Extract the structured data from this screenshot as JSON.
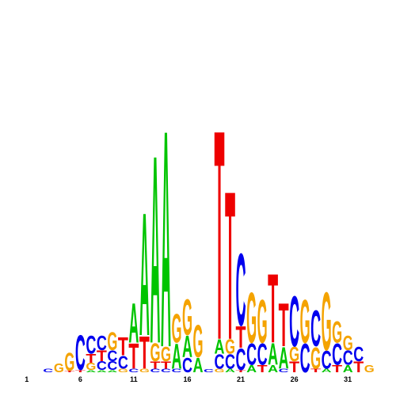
{
  "chart_data": {
    "type": "logo",
    "positions": [
      1,
      2,
      3,
      4,
      5,
      6,
      7,
      8,
      9,
      10,
      11,
      12,
      13,
      14,
      15,
      16,
      17,
      18,
      19,
      20,
      21,
      22,
      23,
      24,
      25,
      26,
      27,
      28,
      29,
      30,
      31,
      32,
      33
    ],
    "stacks": [
      [],
      [],
      [
        {
          "letter": "C",
          "height": 0.05
        }
      ],
      [
        {
          "letter": "G",
          "height": 0.12
        }
      ],
      [
        {
          "letter": "T",
          "height": 0.02
        },
        {
          "letter": "G",
          "height": 0.25
        }
      ],
      [
        {
          "letter": "T",
          "height": 0.03
        },
        {
          "letter": "C",
          "height": 0.48
        }
      ],
      [
        {
          "letter": "A",
          "height": 0.03
        },
        {
          "letter": "G",
          "height": 0.1
        },
        {
          "letter": "T",
          "height": 0.12
        },
        {
          "letter": "C",
          "height": 0.25
        }
      ],
      [
        {
          "letter": "A",
          "height": 0.03
        },
        {
          "letter": "C",
          "height": 0.12
        },
        {
          "letter": "T",
          "height": 0.15
        },
        {
          "letter": "C",
          "height": 0.2
        }
      ],
      [
        {
          "letter": "A",
          "height": 0.03
        },
        {
          "letter": "C",
          "height": 0.12
        },
        {
          "letter": "C",
          "height": 0.15
        },
        {
          "letter": "G",
          "height": 0.25
        }
      ],
      [
        {
          "letter": "G",
          "height": 0.05
        },
        {
          "letter": "C",
          "height": 0.18
        },
        {
          "letter": "T",
          "height": 0.25
        }
      ],
      [
        {
          "letter": "C",
          "height": 0.05
        },
        {
          "letter": "T",
          "height": 0.35
        },
        {
          "letter": "A",
          "height": 0.55
        }
      ],
      [
        {
          "letter": "G",
          "height": 0.05
        },
        {
          "letter": "T",
          "height": 0.45
        },
        {
          "letter": "A",
          "height": 1.7
        }
      ],
      [
        {
          "letter": "C",
          "height": 0.05
        },
        {
          "letter": "T",
          "height": 0.1
        },
        {
          "letter": "G",
          "height": 0.25
        },
        {
          "letter": "A",
          "height": 2.6
        }
      ],
      [
        {
          "letter": "C",
          "height": 0.05
        },
        {
          "letter": "T",
          "height": 0.1
        },
        {
          "letter": "G",
          "height": 0.2
        },
        {
          "letter": "A",
          "height": 3.0
        }
      ],
      [
        {
          "letter": "C",
          "height": 0.05
        },
        {
          "letter": "A",
          "height": 0.35
        },
        {
          "letter": "G",
          "height": 0.4
        }
      ],
      [
        {
          "letter": "C",
          "height": 0.2
        },
        {
          "letter": "A",
          "height": 0.3
        },
        {
          "letter": "G",
          "height": 0.5
        }
      ],
      [
        {
          "letter": "A",
          "height": 0.2
        },
        {
          "letter": "G",
          "height": 0.45
        }
      ],
      [
        {
          "letter": "C",
          "height": 0.04
        }
      ],
      [
        {
          "letter": "G",
          "height": 0.05
        },
        {
          "letter": "C",
          "height": 0.2
        },
        {
          "letter": "A",
          "height": 0.2
        },
        {
          "letter": "T",
          "height": 2.9
        }
      ],
      [
        {
          "letter": "A",
          "height": 0.05
        },
        {
          "letter": "C",
          "height": 0.2
        },
        {
          "letter": "G",
          "height": 0.2
        },
        {
          "letter": "T",
          "height": 2.05
        }
      ],
      [
        {
          "letter": "T",
          "height": 0.03
        },
        {
          "letter": "C",
          "height": 0.3
        },
        {
          "letter": "T",
          "height": 0.3
        },
        {
          "letter": "C",
          "height": 1.0
        }
      ],
      [
        {
          "letter": "A",
          "height": 0.1
        },
        {
          "letter": "C",
          "height": 0.3
        },
        {
          "letter": "G",
          "height": 0.7
        }
      ],
      [
        {
          "letter": "T",
          "height": 0.1
        },
        {
          "letter": "C",
          "height": 0.3
        },
        {
          "letter": "G",
          "height": 0.6
        }
      ],
      [
        {
          "letter": "A",
          "height": 0.1
        },
        {
          "letter": "A",
          "height": 0.3
        },
        {
          "letter": "T",
          "height": 0.95
        }
      ],
      [
        {
          "letter": "C",
          "height": 0.05
        },
        {
          "letter": "A",
          "height": 0.3
        },
        {
          "letter": "T",
          "height": 0.6
        }
      ],
      [
        {
          "letter": "T",
          "height": 0.15
        },
        {
          "letter": "G",
          "height": 0.2
        },
        {
          "letter": "C",
          "height": 0.7
        }
      ],
      [
        {
          "letter": "C",
          "height": 0.4
        },
        {
          "letter": "G",
          "height": 0.6
        }
      ],
      [
        {
          "letter": "T",
          "height": 0.05
        },
        {
          "letter": "G",
          "height": 0.3
        },
        {
          "letter": "C",
          "height": 0.5
        }
      ],
      [
        {
          "letter": "A",
          "height": 0.05
        },
        {
          "letter": "C",
          "height": 0.25
        },
        {
          "letter": "G",
          "height": 0.8
        }
      ],
      [
        {
          "letter": "T",
          "height": 0.1
        },
        {
          "letter": "C",
          "height": 0.3
        },
        {
          "letter": "G",
          "height": 0.3
        }
      ],
      [
        {
          "letter": "A",
          "height": 0.1
        },
        {
          "letter": "C",
          "height": 0.2
        },
        {
          "letter": "G",
          "height": 0.2
        }
      ],
      [
        {
          "letter": "T",
          "height": 0.15
        },
        {
          "letter": "C",
          "height": 0.2
        }
      ],
      [
        {
          "letter": "G",
          "height": 0.1
        }
      ]
    ],
    "colors": {
      "A": "#00c400",
      "C": "#0000ee",
      "G": "#f4a300",
      "T": "#ee0000"
    },
    "xlim": [
      -1.5,
      35.5
    ],
    "xticks": [
      1,
      6,
      11,
      16,
      21,
      26,
      31
    ],
    "ylim": [
      0,
      4
    ]
  }
}
